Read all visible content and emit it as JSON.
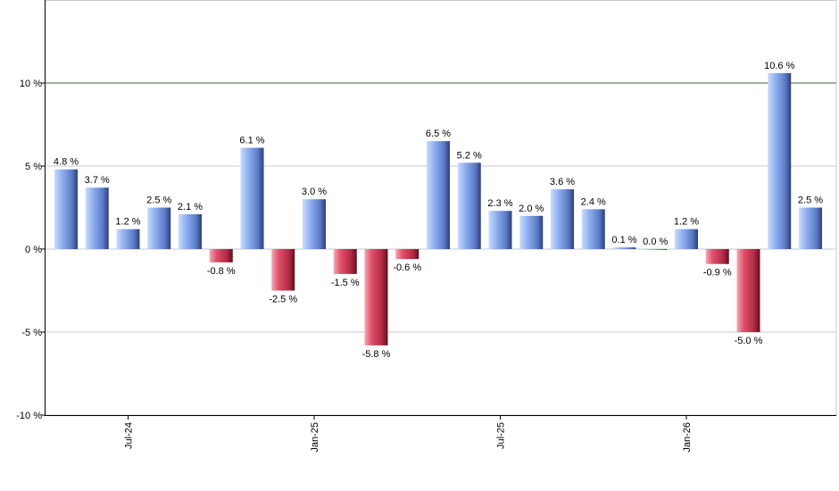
{
  "chart_data": {
    "type": "bar",
    "title": "",
    "xlabel": "",
    "ylabel": "",
    "ylim": [
      -10,
      15
    ],
    "y_ticks": [
      {
        "value": 10,
        "label": "10 %"
      },
      {
        "value": 5,
        "label": "5 %"
      },
      {
        "value": 0,
        "label": "0 %"
      },
      {
        "value": -5,
        "label": "-5 %"
      },
      {
        "value": -10,
        "label": "-10 %"
      }
    ],
    "x_ticks": [
      {
        "index": 2,
        "label": "Jul-24"
      },
      {
        "index": 8,
        "label": "Jan-25"
      },
      {
        "index": 14,
        "label": "Jul-25"
      },
      {
        "index": 20,
        "label": "Jan-26"
      }
    ],
    "reference_line": {
      "value": 10,
      "color": "#2e6b2e"
    },
    "grid": true,
    "legend": "none",
    "colors": {
      "positive": "#7a9ee6",
      "negative": "#c8324e"
    },
    "values": [
      4.8,
      3.7,
      1.2,
      2.5,
      2.1,
      -0.8,
      6.1,
      -2.5,
      3.0,
      -1.5,
      -5.8,
      -0.6,
      6.5,
      5.2,
      2.3,
      2.0,
      3.6,
      2.4,
      0.1,
      0.0,
      1.2,
      -0.9,
      -5.0,
      10.6,
      2.5
    ],
    "labels": [
      "4.8 %",
      "3.7 %",
      "1.2 %",
      "2.5 %",
      "2.1 %",
      "-0.8 %",
      "6.1 %",
      "-2.5 %",
      "3.0 %",
      "-1.5 %",
      "-5.8 %",
      "-0.6 %",
      "6.5 %",
      "5.2 %",
      "2.3 %",
      "2.0 %",
      "3.6 %",
      "2.4 %",
      "0.1 %",
      "0.0 %",
      "1.2 %",
      "-0.9 %",
      "-5.0 %",
      "10.6 %",
      "2.5 %"
    ]
  }
}
